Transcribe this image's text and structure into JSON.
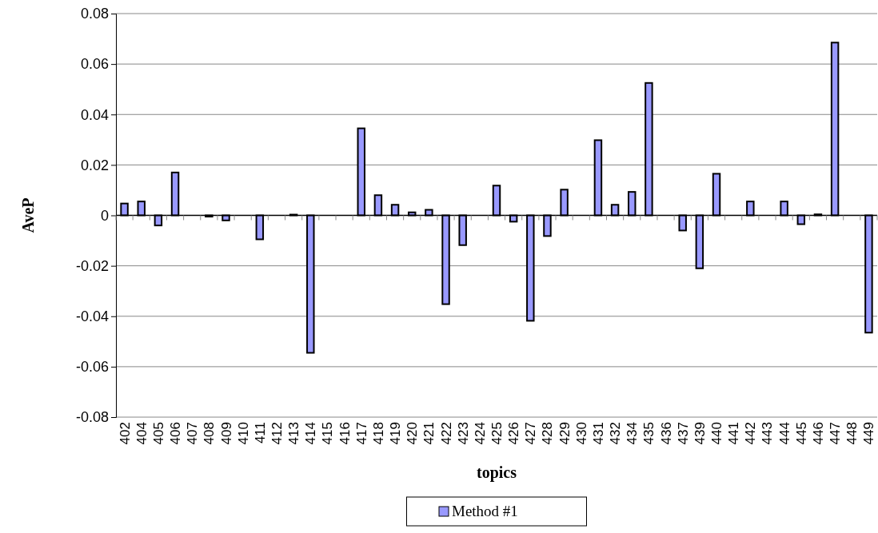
{
  "chart_data": {
    "type": "bar",
    "xlabel": "topics",
    "ylabel": "AveP",
    "categories": [
      "402",
      "404",
      "405",
      "406",
      "407",
      "408",
      "409",
      "410",
      "411",
      "412",
      "413",
      "414",
      "415",
      "416",
      "417",
      "418",
      "419",
      "420",
      "421",
      "422",
      "423",
      "424",
      "425",
      "426",
      "427",
      "428",
      "429",
      "430",
      "431",
      "432",
      "434",
      "435",
      "436",
      "437",
      "439",
      "440",
      "441",
      "442",
      "443",
      "444",
      "445",
      "446",
      "447",
      "448",
      "449"
    ],
    "series": [
      {
        "name": "Method #1",
        "color": "#9999ff",
        "values": [
          0.0047,
          0.0055,
          -0.004,
          0.017,
          0,
          -0.0005,
          -0.002,
          0,
          -0.0095,
          0,
          0.0003,
          -0.0545,
          0,
          0,
          0.0345,
          0.008,
          0.0042,
          0.0012,
          0.0022,
          -0.0352,
          -0.0118,
          0,
          0.0118,
          -0.0025,
          -0.0418,
          -0.0082,
          0.0102,
          0,
          0.0298,
          0.0042,
          0.0093,
          0.0525,
          0,
          -0.006,
          -0.021,
          0.0165,
          0,
          0.0055,
          0,
          0.0055,
          -0.0035,
          0.0004,
          0.0685,
          0,
          -0.0465
        ]
      }
    ],
    "ylim": [
      -0.08,
      0.08
    ],
    "yticks": [
      -0.08,
      -0.06,
      -0.04,
      -0.02,
      0,
      0.02,
      0.04,
      0.06,
      0.08
    ],
    "grid": "y",
    "legend": "bottom"
  }
}
